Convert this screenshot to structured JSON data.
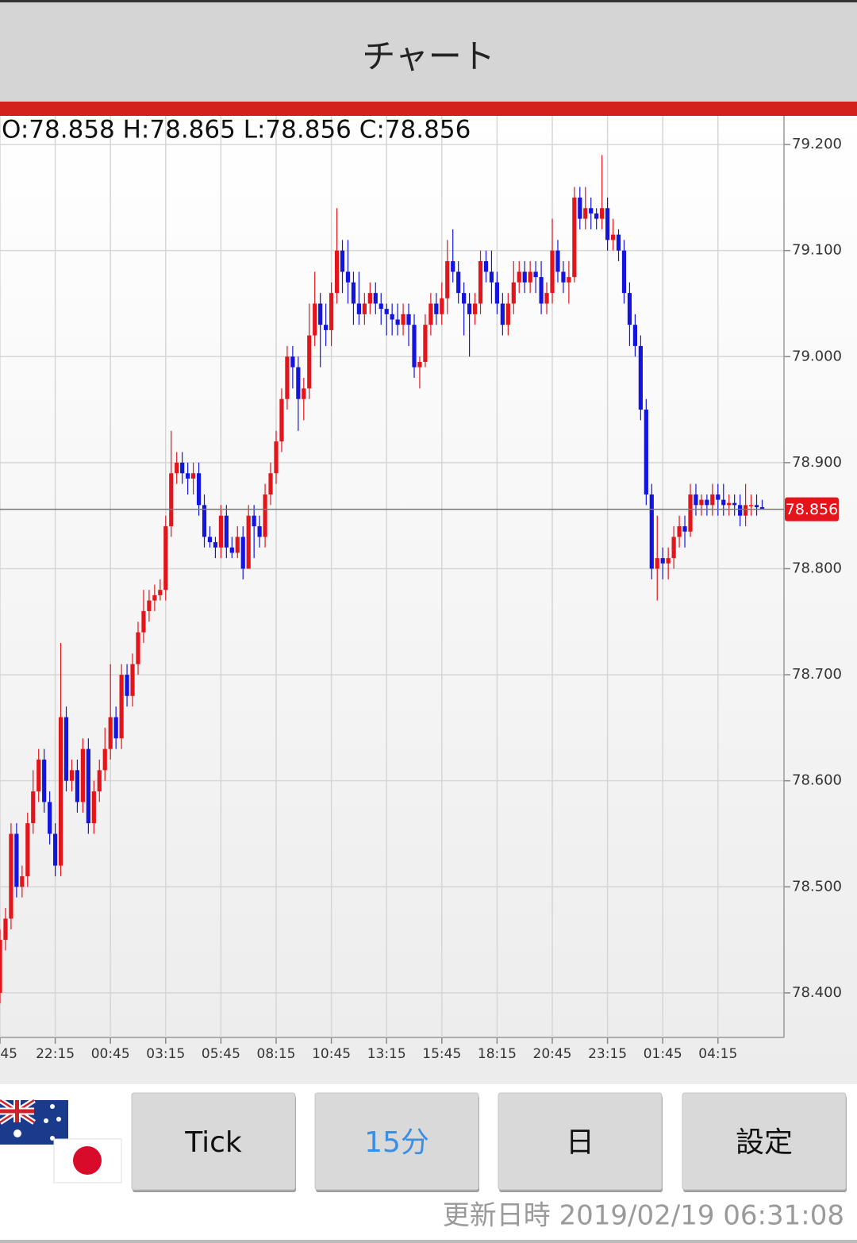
{
  "header": {
    "title": "チャート"
  },
  "chart_data": {
    "type": "candlestick",
    "ohlc_header": "O:78.858 H:78.865 L:78.856 C:78.856",
    "up_color": "#e3141a",
    "down_color": "#1414e0",
    "grid": true,
    "ylim": [
      78.358,
      79.227
    ],
    "yticks": [
      {
        "value": 79.2,
        "label": "79.200"
      },
      {
        "value": 79.1,
        "label": "79.100"
      },
      {
        "value": 79.0,
        "label": "79.000"
      },
      {
        "value": 78.9,
        "label": "78.900"
      },
      {
        "value": 78.8,
        "label": "78.800"
      },
      {
        "value": 78.7,
        "label": "78.700"
      },
      {
        "value": 78.6,
        "label": "78.600"
      },
      {
        "value": 78.5,
        "label": "78.500"
      },
      {
        "value": 78.4,
        "label": "78.400"
      }
    ],
    "last_price": 78.856,
    "categories": [
      ":45",
      null,
      null,
      null,
      null,
      null,
      null,
      null,
      null,
      null,
      "22:15",
      null,
      null,
      null,
      null,
      null,
      null,
      null,
      null,
      null,
      "00:45",
      null,
      null,
      null,
      null,
      null,
      null,
      null,
      null,
      null,
      "03:15",
      null,
      null,
      null,
      null,
      null,
      null,
      null,
      null,
      null,
      "05:45",
      null,
      null,
      null,
      null,
      null,
      null,
      null,
      null,
      null,
      "08:15",
      null,
      null,
      null,
      null,
      null,
      null,
      null,
      null,
      null,
      "10:45",
      null,
      null,
      null,
      null,
      null,
      null,
      null,
      null,
      null,
      "13:15",
      null,
      null,
      null,
      null,
      null,
      null,
      null,
      null,
      null,
      "15:45",
      null,
      null,
      null,
      null,
      null,
      null,
      null,
      null,
      null,
      "18:15",
      null,
      null,
      null,
      null,
      null,
      null,
      null,
      null,
      null,
      "20:45",
      null,
      null,
      null,
      null,
      null,
      null,
      null,
      null,
      null,
      "23:15",
      null,
      null,
      null,
      null,
      null,
      null,
      null,
      null,
      null,
      "01:45",
      null,
      null,
      null,
      null,
      null,
      null,
      null,
      null,
      null,
      "04:15",
      null,
      null,
      null,
      null,
      null,
      null,
      null,
      null
    ],
    "open": [
      78.4,
      78.45,
      78.47,
      78.55,
      78.5,
      78.51,
      78.56,
      78.59,
      78.62,
      78.58,
      78.55,
      78.52,
      78.66,
      78.6,
      78.61,
      78.58,
      78.63,
      78.56,
      78.59,
      78.61,
      78.63,
      78.66,
      78.64,
      78.7,
      78.68,
      78.71,
      78.74,
      78.76,
      78.77,
      78.775,
      78.78,
      78.84,
      78.89,
      78.9,
      78.89,
      78.885,
      78.89,
      78.86,
      78.83,
      78.825,
      78.82,
      78.85,
      78.82,
      78.815,
      78.83,
      78.8,
      78.85,
      78.84,
      78.83,
      78.87,
      78.89,
      78.92,
      78.96,
      79.0,
      78.99,
      78.96,
      78.97,
      79.02,
      79.05,
      79.03,
      79.025,
      79.06,
      79.1,
      79.08,
      79.07,
      79.05,
      79.04,
      79.05,
      79.06,
      79.05,
      79.045,
      79.04,
      79.035,
      79.03,
      79.04,
      79.03,
      78.99,
      78.995,
      79.03,
      79.05,
      79.04,
      79.055,
      79.09,
      79.08,
      79.06,
      79.05,
      79.04,
      79.05,
      79.09,
      79.08,
      79.07,
      79.05,
      79.03,
      79.05,
      79.07,
      79.08,
      79.07,
      79.08,
      79.075,
      79.05,
      79.06,
      79.1,
      79.08,
      79.07,
      79.075,
      79.15,
      79.13,
      79.14,
      79.135,
      79.13,
      79.14,
      79.11,
      79.115,
      79.1,
      79.06,
      79.03,
      79.01,
      78.95,
      78.87,
      78.8,
      78.81,
      78.805,
      78.81,
      78.83,
      78.84,
      78.835,
      78.87,
      78.86,
      78.865,
      78.86,
      78.87,
      78.865,
      78.86,
      78.862,
      78.86,
      78.85,
      78.86,
      78.86,
      78.858
    ],
    "high": [
      78.46,
      78.48,
      78.56,
      78.56,
      78.52,
      78.57,
      78.61,
      78.63,
      78.63,
      78.59,
      78.56,
      78.73,
      78.67,
      78.62,
      78.62,
      78.64,
      78.64,
      78.6,
      78.62,
      78.65,
      78.71,
      78.67,
      78.71,
      78.71,
      78.72,
      78.75,
      78.78,
      78.78,
      78.785,
      78.79,
      78.85,
      78.93,
      78.91,
      78.91,
      78.9,
      78.9,
      78.9,
      78.87,
      78.84,
      78.83,
      78.86,
      78.86,
      78.83,
      78.84,
      78.84,
      78.86,
      78.86,
      78.85,
      78.88,
      78.9,
      78.93,
      78.97,
      79.01,
      79.01,
      79.0,
      78.98,
      79.05,
      79.08,
      79.06,
      79.05,
      79.07,
      79.14,
      79.11,
      79.11,
      79.08,
      79.08,
      79.06,
      79.07,
      79.07,
      79.06,
      79.05,
      79.05,
      79.05,
      79.05,
      79.05,
      79.04,
      79.0,
      79.04,
      79.06,
      79.06,
      79.07,
      79.11,
      79.12,
      79.09,
      79.07,
      79.06,
      79.06,
      79.1,
      79.1,
      79.1,
      79.08,
      79.06,
      79.06,
      79.09,
      79.09,
      79.09,
      79.09,
      79.09,
      79.09,
      79.07,
      79.13,
      79.11,
      79.09,
      79.09,
      79.16,
      79.16,
      79.16,
      79.15,
      79.14,
      79.19,
      79.15,
      79.13,
      79.12,
      79.11,
      79.07,
      79.04,
      79.02,
      78.96,
      78.88,
      78.85,
      78.82,
      78.82,
      78.84,
      78.85,
      78.85,
      78.88,
      78.88,
      78.87,
      78.87,
      78.88,
      78.88,
      78.88,
      78.87,
      78.87,
      78.87,
      78.88,
      78.87,
      78.87,
      78.865
    ],
    "low": [
      78.39,
      78.44,
      78.46,
      78.49,
      78.49,
      78.5,
      78.55,
      78.58,
      78.57,
      78.54,
      78.51,
      78.51,
      78.59,
      78.59,
      78.57,
      78.57,
      78.55,
      78.55,
      78.58,
      78.6,
      78.62,
      78.63,
      78.63,
      78.67,
      78.67,
      78.7,
      78.73,
      78.75,
      78.76,
      78.77,
      78.77,
      78.83,
      78.88,
      78.88,
      78.87,
      78.87,
      78.85,
      78.82,
      78.82,
      78.81,
      78.81,
      78.81,
      78.81,
      78.81,
      78.79,
      78.8,
      78.81,
      78.82,
      78.82,
      78.86,
      78.88,
      78.91,
      78.95,
      78.97,
      78.93,
      78.94,
      78.96,
      79.01,
      78.99,
      79.01,
      79.01,
      79.05,
      79.06,
      79.05,
      79.03,
      79.03,
      79.03,
      79.04,
      79.04,
      79.03,
      79.02,
      79.02,
      79.02,
      79.02,
      79.01,
      78.98,
      78.97,
      78.99,
      79.02,
      79.03,
      79.03,
      79.04,
      79.07,
      79.05,
      79.02,
      79.0,
      79.03,
      79.04,
      79.07,
      79.05,
      79.04,
      79.02,
      79.02,
      79.04,
      79.06,
      79.06,
      79.06,
      79.06,
      79.04,
      79.04,
      79.05,
      79.07,
      79.06,
      79.05,
      79.07,
      79.12,
      79.12,
      79.12,
      79.12,
      79.12,
      79.1,
      79.1,
      79.09,
      79.05,
      79.01,
      79.0,
      78.94,
      78.86,
      78.79,
      78.77,
      78.79,
      78.79,
      78.8,
      78.82,
      78.82,
      78.83,
      78.85,
      78.85,
      78.85,
      78.85,
      78.85,
      78.85,
      78.85,
      78.85,
      78.84,
      78.84,
      78.85,
      78.85,
      78.856
    ],
    "close": [
      78.45,
      78.47,
      78.55,
      78.5,
      78.51,
      78.56,
      78.59,
      78.62,
      78.58,
      78.55,
      78.52,
      78.66,
      78.6,
      78.61,
      78.58,
      78.63,
      78.56,
      78.59,
      78.61,
      78.63,
      78.66,
      78.64,
      78.7,
      78.68,
      78.71,
      78.74,
      78.76,
      78.77,
      78.775,
      78.78,
      78.84,
      78.89,
      78.9,
      78.89,
      78.885,
      78.89,
      78.86,
      78.83,
      78.825,
      78.82,
      78.85,
      78.82,
      78.815,
      78.83,
      78.8,
      78.85,
      78.84,
      78.83,
      78.87,
      78.89,
      78.92,
      78.96,
      79.0,
      78.99,
      78.96,
      78.97,
      79.02,
      79.05,
      79.03,
      79.025,
      79.06,
      79.1,
      79.08,
      79.07,
      79.05,
      79.04,
      79.05,
      79.06,
      79.05,
      79.045,
      79.04,
      79.035,
      79.03,
      79.04,
      79.03,
      78.99,
      78.995,
      79.03,
      79.05,
      79.04,
      79.055,
      79.09,
      79.08,
      79.06,
      79.05,
      79.04,
      79.05,
      79.09,
      79.08,
      79.07,
      79.05,
      79.03,
      79.05,
      79.07,
      79.08,
      79.07,
      79.08,
      79.075,
      79.05,
      79.06,
      79.1,
      79.08,
      79.07,
      79.075,
      79.15,
      79.13,
      79.14,
      79.135,
      79.13,
      79.14,
      79.11,
      79.115,
      79.1,
      79.06,
      79.03,
      79.01,
      78.95,
      78.87,
      78.8,
      78.81,
      78.805,
      78.81,
      78.83,
      78.84,
      78.835,
      78.87,
      78.86,
      78.865,
      78.86,
      78.87,
      78.865,
      78.86,
      78.862,
      78.86,
      78.85,
      78.86,
      78.86,
      78.858,
      78.856
    ]
  },
  "buttons": [
    "Tick",
    "15分",
    "日",
    "設定"
  ],
  "footer": {
    "updated": "更新日時 2019/02/19 06:31:08"
  }
}
